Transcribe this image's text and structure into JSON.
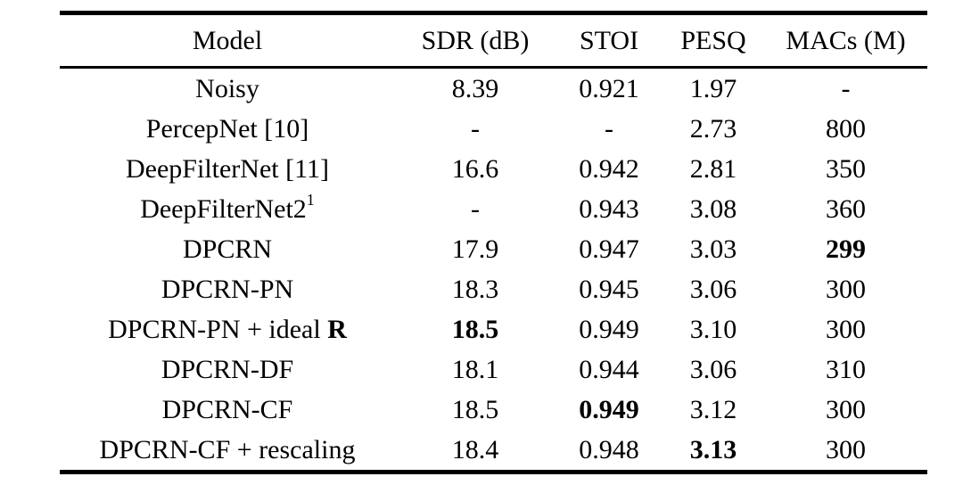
{
  "page": {
    "background": "#ffffff",
    "text_color": "#000000",
    "rule_color": "#000000"
  },
  "table": {
    "columns": [
      {
        "key": "model",
        "label": "Model"
      },
      {
        "key": "sdr",
        "label": "SDR (dB)"
      },
      {
        "key": "stoi",
        "label": "STOI"
      },
      {
        "key": "pesq",
        "label": "PESQ"
      },
      {
        "key": "macs",
        "label": "MACs (M)"
      }
    ],
    "rows": [
      {
        "model": {
          "text": "Noisy"
        },
        "sdr": {
          "text": "8.39"
        },
        "stoi": {
          "text": "0.921"
        },
        "pesq": {
          "text": "1.97"
        },
        "macs": {
          "text": "-"
        }
      },
      {
        "model": {
          "text": "PercepNet [10]"
        },
        "sdr": {
          "text": "-"
        },
        "stoi": {
          "text": "-"
        },
        "pesq": {
          "text": "2.73"
        },
        "macs": {
          "text": "800"
        }
      },
      {
        "model": {
          "text": "DeepFilterNet [11]"
        },
        "sdr": {
          "text": "16.6"
        },
        "stoi": {
          "text": "0.942"
        },
        "pesq": {
          "text": "2.81"
        },
        "macs": {
          "text": "350"
        }
      },
      {
        "model": {
          "text": "DeepFilterNet2",
          "sup": "1"
        },
        "sdr": {
          "text": "-"
        },
        "stoi": {
          "text": "0.943"
        },
        "pesq": {
          "text": "3.08"
        },
        "macs": {
          "text": "360"
        }
      },
      {
        "model": {
          "text": "DPCRN"
        },
        "sdr": {
          "text": "17.9"
        },
        "stoi": {
          "text": "0.947"
        },
        "pesq": {
          "text": "3.03"
        },
        "macs": {
          "text": "299",
          "bold": true
        }
      },
      {
        "model": {
          "text": "DPCRN-PN"
        },
        "sdr": {
          "text": "18.3"
        },
        "stoi": {
          "text": "0.945"
        },
        "pesq": {
          "text": "3.06"
        },
        "macs": {
          "text": "300"
        }
      },
      {
        "model": {
          "text": "DPCRN-PN + ideal ",
          "bold_suffix": "R"
        },
        "sdr": {
          "text": "18.5",
          "bold": true
        },
        "stoi": {
          "text": "0.949"
        },
        "pesq": {
          "text": "3.10"
        },
        "macs": {
          "text": "300"
        }
      },
      {
        "model": {
          "text": "DPCRN-DF"
        },
        "sdr": {
          "text": "18.1"
        },
        "stoi": {
          "text": "0.944"
        },
        "pesq": {
          "text": "3.06"
        },
        "macs": {
          "text": "310"
        }
      },
      {
        "model": {
          "text": "DPCRN-CF"
        },
        "sdr": {
          "text": "18.5"
        },
        "stoi": {
          "text": "0.949",
          "bold": true
        },
        "pesq": {
          "text": "3.12"
        },
        "macs": {
          "text": "300"
        }
      },
      {
        "model": {
          "text": "DPCRN-CF + rescaling"
        },
        "sdr": {
          "text": "18.4"
        },
        "stoi": {
          "text": "0.948"
        },
        "pesq": {
          "text": "3.13",
          "bold": true
        },
        "macs": {
          "text": "300"
        }
      }
    ]
  }
}
